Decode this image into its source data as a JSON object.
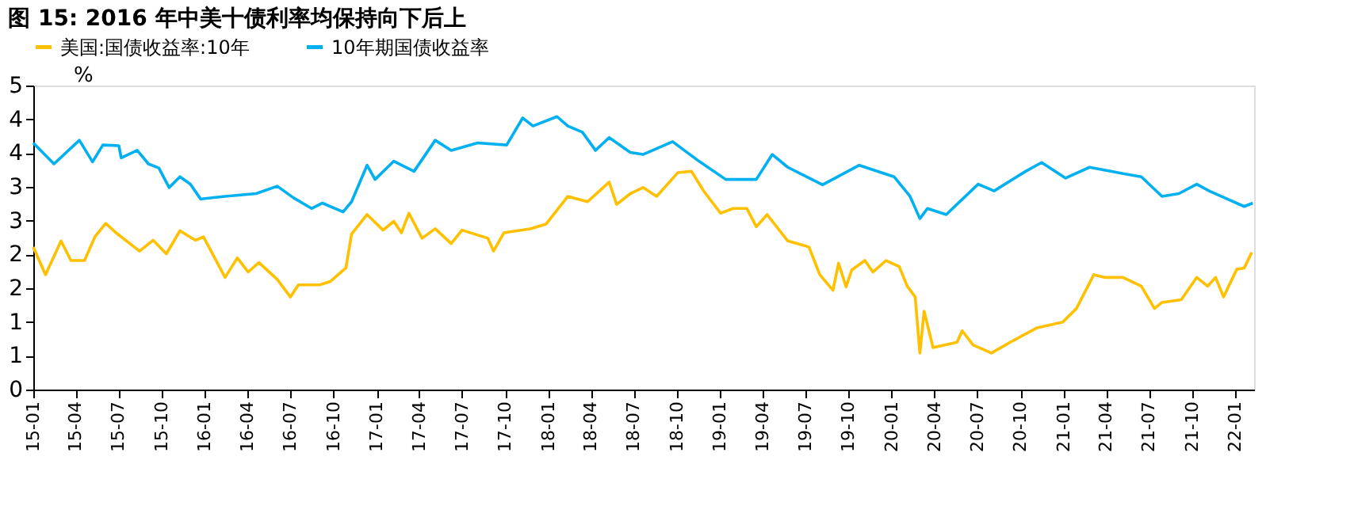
{
  "chart_data": {
    "type": "line",
    "title": "图 15:  2016 年中美十债利率均保持向下后上",
    "ylabel": "%",
    "legend": "top",
    "grid": false,
    "line_style": "solid",
    "marker": "none",
    "xlim": [
      "2015-01-01",
      "2022-02-10"
    ],
    "xticks": [
      {
        "value": "2015-01-01",
        "label": "15-01"
      },
      {
        "value": "2015-04-01",
        "label": "15-04"
      },
      {
        "value": "2015-07-01",
        "label": "15-07"
      },
      {
        "value": "2015-10-01",
        "label": "15-10"
      },
      {
        "value": "2016-01-01",
        "label": "16-01"
      },
      {
        "value": "2016-04-01",
        "label": "16-04"
      },
      {
        "value": "2016-07-01",
        "label": "16-07"
      },
      {
        "value": "2016-10-01",
        "label": "16-10"
      },
      {
        "value": "2017-01-01",
        "label": "17-01"
      },
      {
        "value": "2017-04-01",
        "label": "17-04"
      },
      {
        "value": "2017-07-01",
        "label": "17-07"
      },
      {
        "value": "2017-10-01",
        "label": "17-10"
      },
      {
        "value": "2018-01-01",
        "label": "18-01"
      },
      {
        "value": "2018-04-01",
        "label": "18-04"
      },
      {
        "value": "2018-07-01",
        "label": "18-07"
      },
      {
        "value": "2018-10-01",
        "label": "18-10"
      },
      {
        "value": "2019-01-01",
        "label": "19-01"
      },
      {
        "value": "2019-04-01",
        "label": "19-04"
      },
      {
        "value": "2019-07-01",
        "label": "19-07"
      },
      {
        "value": "2019-10-01",
        "label": "19-10"
      },
      {
        "value": "2020-01-01",
        "label": "20-01"
      },
      {
        "value": "2020-04-01",
        "label": "20-04"
      },
      {
        "value": "2020-07-01",
        "label": "20-07"
      },
      {
        "value": "2020-10-01",
        "label": "20-10"
      },
      {
        "value": "2021-01-01",
        "label": "21-01"
      },
      {
        "value": "2021-04-01",
        "label": "21-04"
      },
      {
        "value": "2021-07-01",
        "label": "21-07"
      },
      {
        "value": "2021-10-01",
        "label": "21-10"
      },
      {
        "value": "2022-01-01",
        "label": "22-01"
      }
    ],
    "ylim": [
      0,
      4.5
    ],
    "yticks": [
      {
        "value": 0,
        "label": "0"
      },
      {
        "value": 0.5,
        "label": "1"
      },
      {
        "value": 1,
        "label": "1"
      },
      {
        "value": 1.5,
        "label": "2"
      },
      {
        "value": 2,
        "label": "2"
      },
      {
        "value": 2.5,
        "label": "3"
      },
      {
        "value": 3,
        "label": "3"
      },
      {
        "value": 3.5,
        "label": "4"
      },
      {
        "value": 4,
        "label": "4"
      },
      {
        "value": 4.5,
        "label": "5"
      }
    ],
    "series": [
      {
        "name": "美国:国债收益率:10年",
        "color": "#ffc000",
        "x": [
          "2015-01-01",
          "2015-01-27",
          "2015-03-01",
          "2015-03-22",
          "2015-04-20",
          "2015-05-12",
          "2015-06-04",
          "2015-06-26",
          "2015-08-15",
          "2015-09-13",
          "2015-10-11",
          "2015-11-09",
          "2015-12-12",
          "2015-12-29",
          "2016-02-13",
          "2016-03-10",
          "2016-04-02",
          "2016-04-25",
          "2016-06-03",
          "2016-07-01",
          "2016-07-18",
          "2016-09-01",
          "2016-09-24",
          "2016-10-27",
          "2016-11-08",
          "2016-12-11",
          "2017-01-14",
          "2017-02-06",
          "2017-02-22",
          "2017-03-10",
          "2017-04-07",
          "2017-05-05",
          "2017-06-08",
          "2017-07-01",
          "2017-08-25",
          "2017-09-06",
          "2017-09-28",
          "2017-11-23",
          "2017-12-27",
          "2018-02-11",
          "2018-03-25",
          "2018-05-10",
          "2018-05-26",
          "2018-06-24",
          "2018-07-21",
          "2018-08-19",
          "2018-10-03",
          "2018-11-01",
          "2018-11-28",
          "2019-01-02",
          "2019-01-29",
          "2019-02-27",
          "2019-03-19",
          "2019-04-11",
          "2019-05-25",
          "2019-07-09",
          "2019-08-01",
          "2019-08-29",
          "2019-09-10",
          "2019-09-26",
          "2019-10-08",
          "2019-11-05",
          "2019-11-22",
          "2019-12-20",
          "2020-01-17",
          "2020-02-03",
          "2020-02-20",
          "2020-03-01",
          "2020-03-10",
          "2020-03-29",
          "2020-05-19",
          "2020-05-30",
          "2020-06-22",
          "2020-07-31",
          "2020-09-09",
          "2020-11-04",
          "2020-12-30",
          "2021-01-28",
          "2021-03-06",
          "2021-03-29",
          "2021-05-07",
          "2021-06-15",
          "2021-07-13",
          "2021-07-29",
          "2021-09-08",
          "2021-10-11",
          "2021-11-03",
          "2021-11-20",
          "2021-12-07",
          "2022-01-04",
          "2022-01-20",
          "2022-02-05"
        ],
        "values": [
          2.11,
          1.7,
          2.2,
          1.91,
          1.91,
          2.26,
          2.46,
          2.32,
          2.05,
          2.21,
          2.01,
          2.35,
          2.21,
          2.26,
          1.66,
          1.95,
          1.74,
          1.88,
          1.63,
          1.37,
          1.55,
          1.55,
          1.6,
          1.8,
          2.3,
          2.59,
          2.36,
          2.49,
          2.32,
          2.61,
          2.24,
          2.38,
          2.16,
          2.36,
          2.24,
          2.05,
          2.32,
          2.38,
          2.45,
          2.86,
          2.78,
          3.07,
          2.74,
          2.9,
          2.99,
          2.86,
          3.21,
          3.23,
          2.93,
          2.61,
          2.68,
          2.68,
          2.41,
          2.59,
          2.2,
          2.11,
          1.7,
          1.47,
          1.87,
          1.52,
          1.77,
          1.91,
          1.74,
          1.91,
          1.82,
          1.53,
          1.37,
          0.54,
          1.16,
          0.62,
          0.7,
          0.87,
          0.66,
          0.54,
          0.7,
          0.91,
          1.0,
          1.2,
          1.7,
          1.66,
          1.66,
          1.53,
          1.2,
          1.29,
          1.33,
          1.66,
          1.53,
          1.66,
          1.37,
          1.78,
          1.8,
          2.03
        ]
      },
      {
        "name": "10年期国债收益率",
        "color": "#00b0f0",
        "x": [
          "2015-01-01",
          "2015-02-14",
          "2015-04-09",
          "2015-05-07",
          "2015-05-29",
          "2015-07-02",
          "2015-07-07",
          "2015-08-10",
          "2015-09-03",
          "2015-09-25",
          "2015-10-17",
          "2015-11-09",
          "2015-12-01",
          "2015-12-23",
          "2016-02-13",
          "2016-04-19",
          "2016-06-03",
          "2016-07-07",
          "2016-08-15",
          "2016-09-07",
          "2016-10-21",
          "2016-11-08",
          "2016-12-11",
          "2016-12-28",
          "2017-02-06",
          "2017-03-21",
          "2017-05-05",
          "2017-06-08",
          "2017-08-03",
          "2017-10-04",
          "2017-11-07",
          "2017-11-29",
          "2018-01-19",
          "2018-02-11",
          "2018-03-14",
          "2018-04-11",
          "2018-05-10",
          "2018-06-24",
          "2018-07-21",
          "2018-09-22",
          "2018-11-17",
          "2019-01-13",
          "2019-03-19",
          "2019-04-22",
          "2019-05-25",
          "2019-08-07",
          "2019-10-24",
          "2020-01-06",
          "2020-02-09",
          "2020-03-01",
          "2020-03-17",
          "2020-04-26",
          "2020-07-03",
          "2020-08-06",
          "2020-10-12",
          "2020-11-15",
          "2021-01-05",
          "2021-02-25",
          "2021-05-12",
          "2021-06-15",
          "2021-07-29",
          "2021-09-03",
          "2021-10-11",
          "2021-11-09",
          "2022-01-20",
          "2022-02-07"
        ],
        "values": [
          3.65,
          3.34,
          3.69,
          3.37,
          3.62,
          3.61,
          3.43,
          3.54,
          3.34,
          3.28,
          2.99,
          3.15,
          3.04,
          2.82,
          2.86,
          2.9,
          3.01,
          2.84,
          2.68,
          2.76,
          2.63,
          2.78,
          3.32,
          3.11,
          3.38,
          3.23,
          3.69,
          3.54,
          3.65,
          3.62,
          4.02,
          3.9,
          4.04,
          3.9,
          3.81,
          3.54,
          3.73,
          3.51,
          3.48,
          3.67,
          3.38,
          3.11,
          3.11,
          3.48,
          3.29,
          3.03,
          3.32,
          3.15,
          2.86,
          2.53,
          2.68,
          2.59,
          3.04,
          2.94,
          3.23,
          3.36,
          3.13,
          3.29,
          3.19,
          3.15,
          2.86,
          2.9,
          3.04,
          2.93,
          2.71,
          2.76
        ]
      }
    ]
  }
}
